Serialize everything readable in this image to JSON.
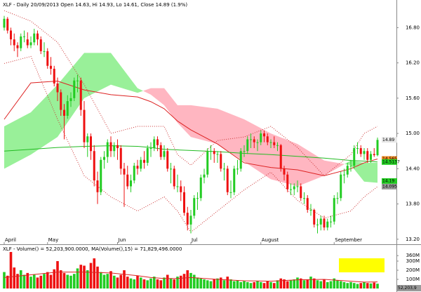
{
  "chart_data": {
    "type": "candlestick",
    "title": "XLF - Daily 20/09/2013 Open 14.63, Hi 14.93, Lo 14.61, Close 14.89 (1.9%)",
    "up_color": "#22cc22",
    "down_color": "#ee1111",
    "ylim": [
      13.15,
      17.27
    ],
    "yticks": [
      {
        "value": 16.8,
        "label": "16.80"
      },
      {
        "value": 16.2,
        "label": "16.20"
      },
      {
        "value": 15.6,
        "label": "15.60"
      },
      {
        "value": 15.0,
        "label": "15.00"
      },
      {
        "value": 14.4,
        "label": "14.40"
      },
      {
        "value": 13.8,
        "label": "13.80"
      },
      {
        "value": 13.2,
        "label": "13.20"
      }
    ],
    "xticks": [
      {
        "value": 0,
        "label": "April"
      },
      {
        "value": 13,
        "label": "May"
      },
      {
        "value": 34,
        "label": "Jun"
      },
      {
        "value": 56,
        "label": "Jul"
      },
      {
        "value": 77,
        "label": "August"
      },
      {
        "value": 99,
        "label": "September"
      }
    ],
    "candles": [
      [
        16.8,
        17.0,
        16.75,
        16.95
      ],
      [
        16.95,
        16.98,
        16.7,
        16.75
      ],
      [
        16.75,
        16.8,
        16.5,
        16.6
      ],
      [
        16.6,
        16.7,
        16.4,
        16.5
      ],
      [
        16.5,
        16.55,
        16.3,
        16.45
      ],
      [
        16.45,
        16.7,
        16.4,
        16.65
      ],
      [
        16.65,
        16.75,
        16.55,
        16.65
      ],
      [
        16.6,
        16.72,
        16.45,
        16.5
      ],
      [
        16.5,
        16.65,
        16.45,
        16.55
      ],
      [
        16.55,
        16.78,
        16.5,
        16.7
      ],
      [
        16.7,
        16.75,
        16.5,
        16.6
      ],
      [
        16.6,
        16.65,
        16.35,
        16.4
      ],
      [
        16.4,
        16.55,
        16.3,
        16.4
      ],
      [
        16.4,
        16.45,
        16.1,
        16.15
      ],
      [
        16.15,
        16.3,
        16.0,
        16.1
      ],
      [
        16.1,
        16.15,
        15.8,
        15.85
      ],
      [
        15.85,
        15.95,
        15.55,
        15.7
      ],
      [
        15.7,
        15.75,
        15.3,
        15.4
      ],
      [
        15.4,
        15.5,
        14.9,
        15.3
      ],
      [
        15.3,
        15.65,
        15.25,
        15.55
      ],
      [
        15.55,
        15.7,
        15.45,
        15.6
      ],
      [
        15.6,
        15.95,
        15.55,
        15.9
      ],
      [
        15.9,
        16.0,
        15.7,
        15.9
      ],
      [
        15.9,
        15.95,
        15.3,
        15.4
      ],
      [
        15.4,
        15.55,
        14.75,
        14.85
      ],
      [
        14.85,
        15.0,
        14.6,
        14.95
      ],
      [
        14.95,
        15.0,
        14.55,
        14.7
      ],
      [
        14.7,
        14.8,
        14.1,
        14.2
      ],
      [
        14.2,
        14.35,
        13.8,
        14.0
      ],
      [
        14.0,
        14.6,
        13.95,
        14.55
      ],
      [
        14.55,
        14.7,
        14.4,
        14.6
      ],
      [
        14.6,
        14.9,
        14.5,
        14.85
      ],
      [
        14.85,
        14.95,
        14.6,
        14.7
      ],
      [
        14.7,
        14.85,
        14.6,
        14.8
      ],
      [
        14.8,
        14.9,
        14.55,
        14.75
      ],
      [
        14.75,
        14.8,
        14.3,
        14.4
      ],
      [
        14.4,
        14.5,
        13.75,
        14.3
      ],
      [
        14.3,
        14.45,
        14.05,
        14.1
      ],
      [
        14.1,
        14.3,
        14.0,
        14.2
      ],
      [
        14.2,
        14.5,
        14.15,
        14.45
      ],
      [
        14.45,
        14.55,
        14.3,
        14.4
      ],
      [
        14.4,
        14.6,
        14.35,
        14.55
      ],
      [
        14.55,
        14.7,
        14.4,
        14.5
      ],
      [
        14.5,
        14.8,
        14.45,
        14.75
      ],
      [
        14.75,
        14.85,
        14.6,
        14.75
      ],
      [
        14.75,
        14.95,
        14.7,
        14.9
      ],
      [
        14.9,
        14.95,
        14.7,
        14.8
      ],
      [
        14.8,
        14.85,
        14.55,
        14.6
      ],
      [
        14.6,
        14.8,
        14.55,
        14.7
      ],
      [
        14.7,
        14.75,
        14.35,
        14.4
      ],
      [
        14.4,
        14.5,
        14.15,
        14.4
      ],
      [
        14.4,
        14.45,
        14.05,
        14.1
      ],
      [
        14.1,
        14.3,
        14.0,
        14.1
      ],
      [
        14.1,
        14.2,
        13.85,
        14.0
      ],
      [
        14.0,
        14.1,
        13.6,
        13.65
      ],
      [
        13.65,
        13.75,
        13.35,
        13.45
      ],
      [
        13.45,
        13.7,
        13.3,
        13.6
      ],
      [
        13.6,
        13.95,
        13.55,
        13.9
      ],
      [
        13.9,
        14.0,
        13.7,
        13.9
      ],
      [
        13.9,
        14.3,
        13.85,
        14.25
      ],
      [
        14.25,
        14.4,
        14.15,
        14.3
      ],
      [
        14.3,
        14.75,
        14.25,
        14.7
      ],
      [
        14.7,
        14.8,
        14.55,
        14.7
      ],
      [
        14.7,
        14.75,
        14.5,
        14.65
      ],
      [
        14.65,
        14.7,
        14.5,
        14.65
      ],
      [
        14.65,
        14.7,
        14.35,
        14.4
      ],
      [
        14.4,
        14.5,
        14.2,
        14.4
      ],
      [
        14.4,
        14.45,
        13.95,
        14.0
      ],
      [
        14.0,
        14.2,
        13.9,
        14.0
      ],
      [
        14.0,
        14.45,
        13.95,
        14.4
      ],
      [
        14.4,
        14.55,
        14.3,
        14.4
      ],
      [
        14.4,
        14.75,
        14.35,
        14.7
      ],
      [
        14.7,
        14.8,
        14.6,
        14.7
      ],
      [
        14.7,
        14.95,
        14.65,
        14.9
      ],
      [
        14.9,
        15.0,
        14.75,
        14.9
      ],
      [
        14.9,
        14.95,
        14.75,
        14.85
      ],
      [
        14.85,
        14.9,
        14.7,
        14.85
      ],
      [
        14.85,
        15.05,
        14.8,
        15.0
      ],
      [
        15.0,
        15.05,
        14.85,
        14.95
      ],
      [
        14.95,
        15.0,
        14.8,
        14.85
      ],
      [
        14.85,
        14.9,
        14.75,
        14.85
      ],
      [
        14.85,
        14.95,
        14.75,
        14.8
      ],
      [
        14.8,
        14.85,
        14.7,
        14.8
      ],
      [
        14.8,
        14.82,
        14.35,
        14.4
      ],
      [
        14.4,
        14.45,
        14.2,
        14.3
      ],
      [
        14.3,
        14.35,
        14.0,
        14.05
      ],
      [
        14.05,
        14.15,
        13.95,
        14.05
      ],
      [
        14.05,
        14.15,
        13.95,
        14.1
      ],
      [
        14.1,
        14.2,
        14.0,
        14.1
      ],
      [
        14.1,
        14.15,
        13.85,
        13.9
      ],
      [
        13.9,
        14.0,
        13.8,
        13.9
      ],
      [
        13.9,
        13.95,
        13.65,
        13.7
      ],
      [
        13.7,
        13.8,
        13.6,
        13.7
      ],
      [
        13.7,
        13.72,
        13.4,
        13.45
      ],
      [
        13.45,
        13.55,
        13.3,
        13.45
      ],
      [
        13.45,
        13.6,
        13.35,
        13.55
      ],
      [
        13.55,
        13.6,
        13.35,
        13.4
      ],
      [
        13.4,
        13.55,
        13.35,
        13.5
      ],
      [
        13.5,
        13.6,
        13.4,
        13.5
      ],
      [
        13.5,
        13.95,
        13.45,
        13.9
      ],
      [
        13.9,
        14.0,
        13.8,
        13.9
      ],
      [
        13.9,
        14.35,
        13.85,
        14.3
      ],
      [
        14.3,
        14.4,
        14.15,
        14.3
      ],
      [
        14.3,
        14.5,
        14.25,
        14.45
      ],
      [
        14.45,
        14.55,
        14.35,
        14.45
      ],
      [
        14.45,
        14.8,
        14.4,
        14.75
      ],
      [
        14.75,
        14.85,
        14.65,
        14.75
      ],
      [
        14.75,
        14.8,
        14.6,
        14.65
      ],
      [
        14.65,
        14.75,
        14.55,
        14.7
      ],
      [
        14.7,
        14.75,
        14.5,
        14.55
      ],
      [
        14.55,
        14.7,
        14.5,
        14.65
      ],
      [
        14.65,
        14.75,
        14.6,
        14.63
      ],
      [
        14.63,
        14.93,
        14.61,
        14.89
      ]
    ],
    "overlays": {
      "x": [
        0,
        8,
        16,
        24,
        32,
        40,
        44,
        48,
        52,
        56,
        64,
        72,
        80,
        88,
        96,
        104,
        108,
        112
      ],
      "cloud_up_color": "#99f099",
      "cloud_down_color": "#ffb6c1",
      "span_a": [
        15.12,
        15.36,
        15.83,
        16.37,
        16.37,
        15.77,
        15.66,
        15.48,
        15.18,
        14.94,
        14.82,
        14.52,
        14.22,
        14.1,
        14.28,
        14.54,
        14.5,
        14.5
      ],
      "span_b": [
        14.4,
        14.64,
        14.94,
        15.6,
        15.83,
        15.69,
        15.77,
        15.77,
        15.48,
        15.48,
        15.42,
        15.24,
        15.0,
        14.82,
        14.54,
        14.46,
        14.18,
        14.16
      ],
      "lines": [
        {
          "color": "#dd2222",
          "dotted": false,
          "values": [
            15.24,
            15.86,
            15.89,
            15.74,
            15.66,
            15.62,
            15.54,
            15.42,
            15.21,
            15.06,
            14.82,
            14.5,
            14.42,
            14.38,
            14.28,
            14.4,
            14.5,
            14.565
          ]
        },
        {
          "color": "#22bb22",
          "dotted": false,
          "values": [
            14.7,
            14.73,
            14.76,
            14.78,
            14.79,
            14.78,
            14.76,
            14.73,
            14.72,
            14.71,
            14.69,
            14.66,
            14.64,
            14.61,
            14.58,
            14.54,
            14.53,
            14.5137
          ]
        },
        {
          "color": "#cc3333",
          "dotted": true,
          "values": [
            17.09,
            16.91,
            16.55,
            15.83,
            15.0,
            15.12,
            15.12,
            15.12,
            14.64,
            14.46,
            14.88,
            14.94,
            15.12,
            14.76,
            14.28,
            14.64,
            15.0,
            15.12
          ]
        },
        {
          "color": "#cc3333",
          "dotted": true,
          "values": [
            16.19,
            16.31,
            15.24,
            14.28,
            13.92,
            13.68,
            13.8,
            13.92,
            13.68,
            13.32,
            13.68,
            14.04,
            14.34,
            13.86,
            13.56,
            13.68,
            13.92,
            14.095
          ]
        }
      ]
    },
    "flags": [
      {
        "value": 14.89,
        "color": "#e8e8e8"
      },
      {
        "value": 14.565,
        "color": "#f08a24"
      },
      {
        "value": 14.5137,
        "color": "#22cc22"
      },
      {
        "value": 14.19,
        "color": "#22cc22"
      },
      {
        "value": 14.095,
        "color": "#9a9a9a"
      }
    ],
    "volume": {
      "title": "XLF - Volume() = 52,203,900.0000, MA(Volume(),15) = 71,829,496.0000",
      "ylim": [
        0,
        469
      ],
      "yticks": [
        {
          "value": 360,
          "label": "360M"
        },
        {
          "value": 300,
          "label": "300M"
        },
        {
          "value": 200,
          "label": "200M"
        },
        {
          "value": 100,
          "label": "100M"
        }
      ],
      "values": [
        180,
        140,
        400,
        230,
        160,
        200,
        150,
        170,
        130,
        150,
        120,
        140,
        160,
        180,
        150,
        210,
        300,
        200,
        170,
        150,
        140,
        160,
        220,
        260,
        250,
        200,
        280,
        330,
        240,
        180,
        150,
        160,
        190,
        140,
        120,
        150,
        200,
        130,
        110,
        100,
        140,
        120,
        100,
        90,
        110,
        130,
        100,
        90,
        120,
        150,
        110,
        100,
        130,
        140,
        160,
        200,
        170,
        150,
        120,
        110,
        100,
        90,
        80,
        100,
        110,
        120,
        90,
        130,
        100,
        80,
        90,
        70,
        80,
        70,
        60,
        70,
        80,
        70,
        60,
        80,
        70,
        60,
        90,
        110,
        100,
        80,
        90,
        100,
        120,
        110,
        90,
        100,
        130,
        110,
        90,
        80,
        100,
        70,
        80,
        110,
        90,
        80,
        70,
        60,
        70,
        60,
        50,
        60,
        70,
        60,
        55,
        65,
        52.2039
      ],
      "ma_color": "#dd2222",
      "ma": [
        120,
        150,
        180,
        180,
        170,
        140,
        120,
        110,
        110,
        120,
        100,
        85,
        80,
        95,
        100,
        80,
        70,
        71.8295
      ],
      "last_label": "52,203,9"
    }
  }
}
